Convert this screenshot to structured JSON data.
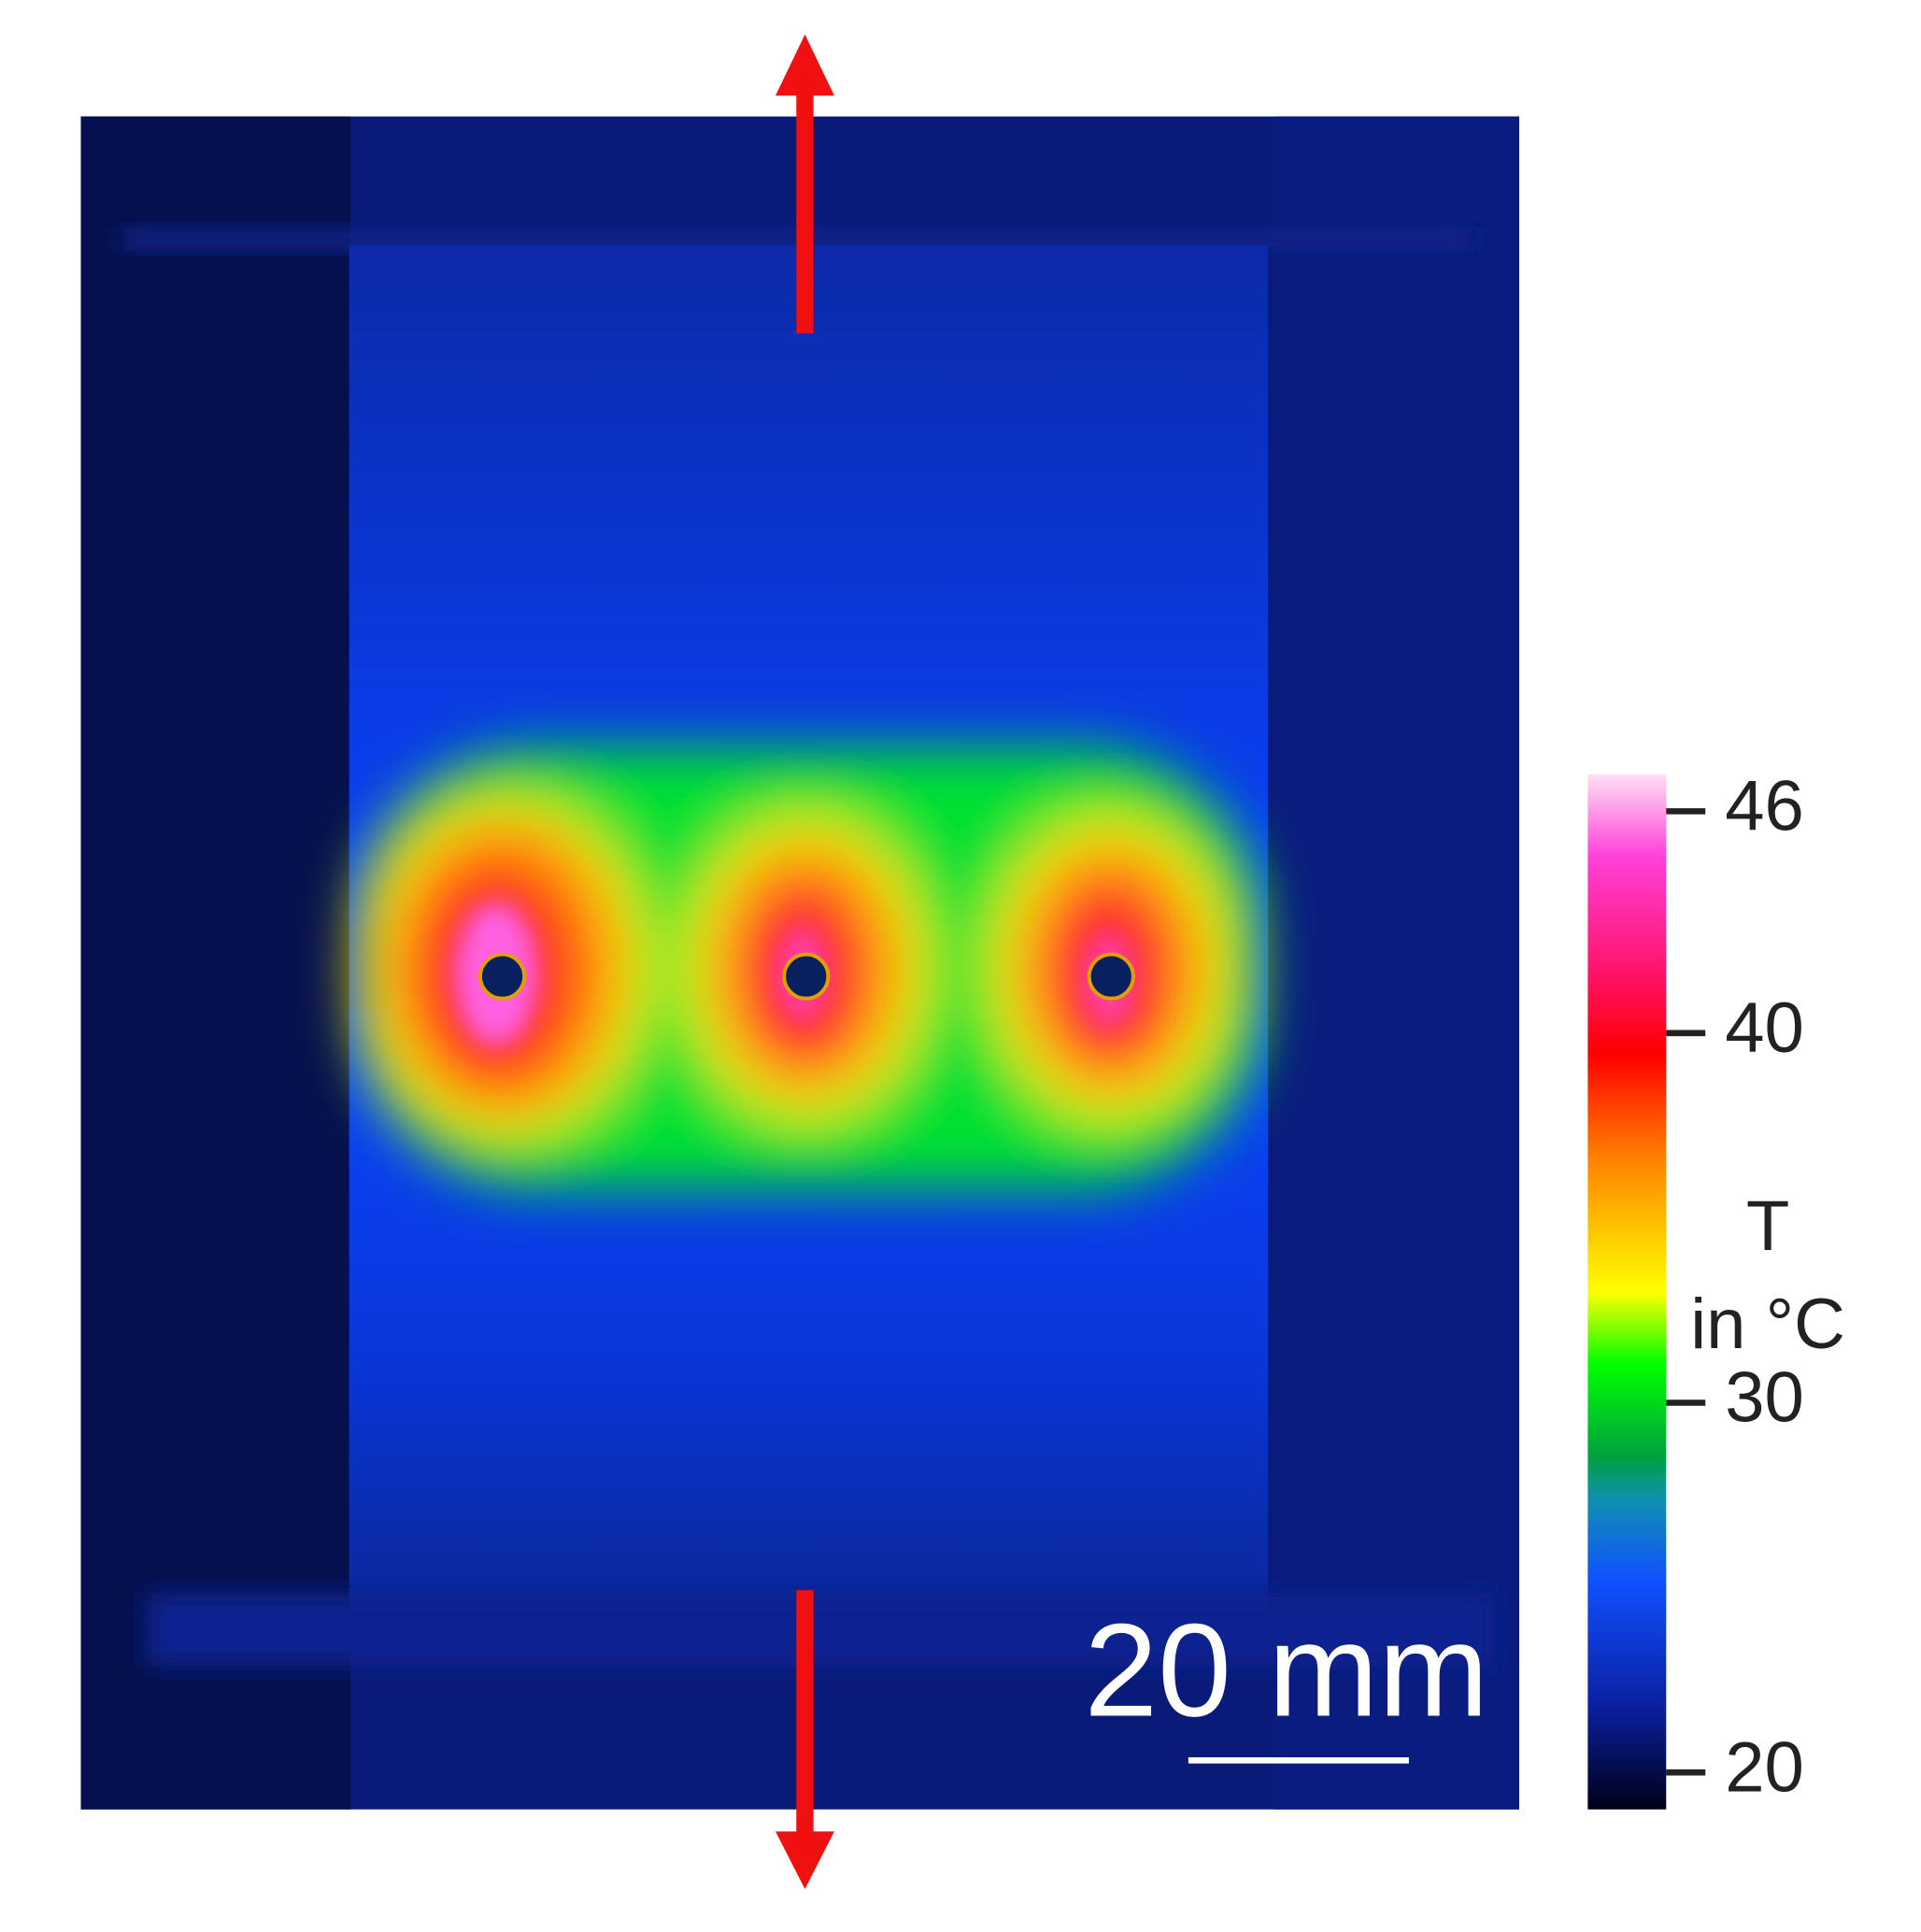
{
  "colorbar": {
    "title": "T",
    "unit": "in °C",
    "lim": [
      19,
      47
    ],
    "ticks": [
      20,
      30,
      40,
      46
    ]
  },
  "scale_bar": {
    "label": "20 mm"
  }
}
